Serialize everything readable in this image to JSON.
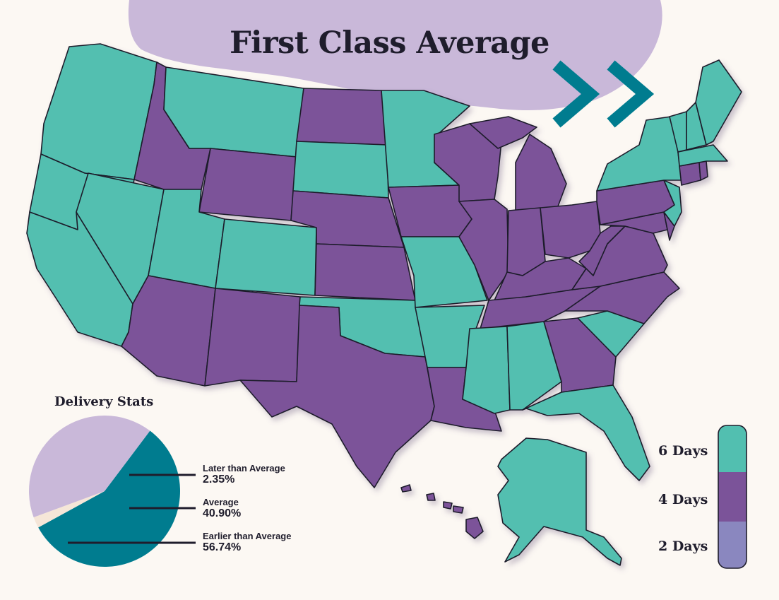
{
  "title": "First Class Average",
  "colors": {
    "background": "#fcf8f3",
    "blob": "#c9b8d9",
    "chevron": "#007c8f",
    "six_days": "#52bfb0",
    "four_days": "#7b5399",
    "two_days": "#8a87bf",
    "border": "#1f1d2c"
  },
  "legend": [
    {
      "label": "6 Days",
      "color": "#52bfb0"
    },
    {
      "label": "4 Days",
      "color": "#7b5399"
    },
    {
      "label": "2 Days",
      "color": "#8a87bf"
    }
  ],
  "states_6_days": [
    "WA",
    "OR",
    "CA",
    "NV",
    "UT",
    "CO",
    "MT",
    "SD",
    "MN",
    "MO",
    "OK",
    "AR",
    "MS",
    "AL",
    "SC",
    "FL",
    "AK",
    "NY",
    "VT",
    "NH",
    "ME",
    "MA",
    "NJ"
  ],
  "states_4_days": [
    "ID",
    "WY",
    "ND",
    "NE",
    "KS",
    "AZ",
    "NM",
    "TX",
    "LA",
    "IA",
    "WI",
    "IL",
    "MI",
    "IN",
    "OH",
    "KY",
    "TN",
    "GA",
    "NC",
    "VA",
    "WV",
    "PA",
    "MD",
    "DE",
    "CT",
    "RI",
    "HI"
  ],
  "delivery_stats": {
    "title": "Delivery Stats",
    "slices": [
      {
        "label": "Later than Average",
        "value_label": "2.35%",
        "value": 2.35,
        "color": "#f5e6d8"
      },
      {
        "label": "Average",
        "value_label": "40.90%",
        "value": 40.9,
        "color": "#c9b8d9"
      },
      {
        "label": "Earlier than Average",
        "value_label": "56.74%",
        "value": 56.74,
        "color": "#007c8f"
      }
    ]
  }
}
